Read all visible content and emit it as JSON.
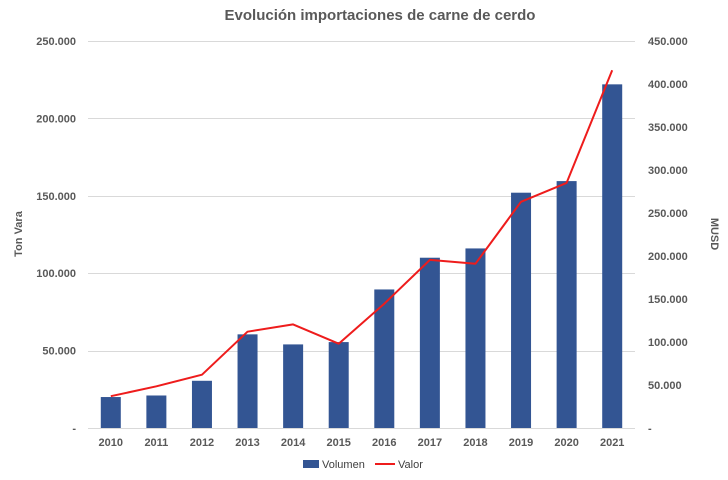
{
  "chart_data": {
    "type": "bar",
    "title": "Evolución importaciones de carne de cerdo",
    "categories": [
      "2010",
      "2011",
      "2012",
      "2013",
      "2014",
      "2015",
      "2016",
      "2017",
      "2018",
      "2019",
      "2020",
      "2021"
    ],
    "series": [
      {
        "name": "Volumen",
        "type": "bar",
        "axis": "left",
        "color": "#335593",
        "values": [
          20000,
          21000,
          30500,
          60500,
          54000,
          55500,
          89500,
          110000,
          116000,
          152000,
          159500,
          222000
        ]
      },
      {
        "name": "Valor",
        "type": "line",
        "axis": "right",
        "color": "#ee1c1c",
        "values": [
          37000,
          48500,
          62000,
          112000,
          120500,
          98000,
          144500,
          195500,
          191000,
          263000,
          285000,
          416000
        ]
      }
    ],
    "y_left": {
      "label": "Ton Vara",
      "ylim": [
        0,
        250000
      ],
      "ticks": [
        0,
        50000,
        100000,
        150000,
        200000,
        250000
      ],
      "tick_labels": [
        "-",
        "50.000",
        "100.000",
        "150.000",
        "200.000",
        "250.000"
      ]
    },
    "y_right": {
      "label": "MUSD",
      "ylim": [
        0,
        450000
      ],
      "ticks": [
        0,
        50000,
        100000,
        150000,
        200000,
        250000,
        300000,
        350000,
        400000,
        450000
      ],
      "tick_labels": [
        "-",
        "50.000",
        "100.000",
        "150.000",
        "200.000",
        "250.000",
        "300.000",
        "350.000",
        "400.000",
        "450.000"
      ]
    },
    "grid": true,
    "legend": "bottom"
  }
}
